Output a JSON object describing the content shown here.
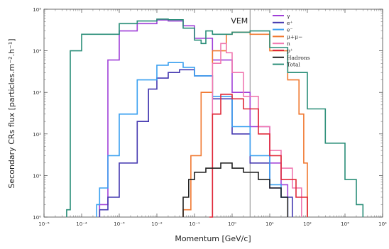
{
  "chart_data": {
    "type": "line",
    "xlabel": "Momentum [GeV/c]",
    "ylabel": "Secondary CRs flux [particles.m⁻².h⁻¹]",
    "xscale": "log",
    "yscale": "log",
    "xlim": [
      1e-05,
      10000
    ],
    "ylim": [
      1,
      100000
    ],
    "x_tick_labels": [
      "10⁻⁵",
      "10⁻⁴",
      "10⁻³",
      "10⁻²",
      "10⁻¹",
      "10⁰",
      "10¹",
      "10²",
      "10³",
      "10⁴"
    ],
    "y_tick_labels": [
      "10⁰",
      "10¹",
      "10²",
      "10³",
      "10⁴",
      "10⁵"
    ],
    "grid": false,
    "legend_position": "top-right",
    "annotation": {
      "text": "VEM",
      "x": 3
    },
    "series": [
      {
        "name": "γ",
        "color": "#a040d8",
        "points": [
          [
            0.0003,
            2
          ],
          [
            0.0005,
            6000
          ],
          [
            0.001,
            30000
          ],
          [
            0.003,
            45000
          ],
          [
            0.01,
            55000
          ],
          [
            0.02,
            52000
          ],
          [
            0.05,
            40000
          ],
          [
            0.1,
            20000
          ],
          [
            0.3,
            6000
          ],
          [
            1,
            1000
          ],
          [
            3,
            150
          ],
          [
            10,
            20
          ],
          [
            20,
            6
          ],
          [
            30,
            2
          ]
        ]
      },
      {
        "name": "e⁺",
        "color": "#4438b0",
        "points": [
          [
            0.0003,
            1.5
          ],
          [
            0.0005,
            3
          ],
          [
            0.001,
            20
          ],
          [
            0.003,
            200
          ],
          [
            0.006,
            1200
          ],
          [
            0.01,
            2200
          ],
          [
            0.02,
            3000
          ],
          [
            0.04,
            3500
          ],
          [
            0.1,
            2500
          ],
          [
            0.3,
            700
          ],
          [
            1,
            100
          ],
          [
            3,
            20
          ],
          [
            10,
            5
          ],
          [
            20,
            3
          ],
          [
            40,
            1.5
          ]
        ]
      },
      {
        "name": "e⁻",
        "color": "#3aa0f0",
        "points": [
          [
            0.00025,
            2
          ],
          [
            0.0003,
            5
          ],
          [
            0.0005,
            30
          ],
          [
            0.001,
            300
          ],
          [
            0.003,
            2000
          ],
          [
            0.01,
            4500
          ],
          [
            0.02,
            5200
          ],
          [
            0.05,
            4000
          ],
          [
            0.1,
            2500
          ],
          [
            0.3,
            800
          ],
          [
            1,
            150
          ],
          [
            3,
            30
          ],
          [
            10,
            6
          ],
          [
            20,
            3
          ],
          [
            30,
            1.5
          ]
        ]
      },
      {
        "name": "μ+μ−",
        "color": "#f07830",
        "points": [
          [
            0.05,
            1.5
          ],
          [
            0.08,
            30
          ],
          [
            0.15,
            1000
          ],
          [
            0.3,
            10000
          ],
          [
            0.7,
            25000
          ],
          [
            1,
            28000
          ],
          [
            3,
            25000
          ],
          [
            10,
            10000
          ],
          [
            30,
            2000
          ],
          [
            60,
            300
          ],
          [
            80,
            20
          ],
          [
            100,
            2
          ]
        ]
      },
      {
        "name": "n",
        "color": "#f078b0",
        "points": [
          [
            0.3,
            5000
          ],
          [
            0.5,
            15000
          ],
          [
            0.7,
            9000
          ],
          [
            1,
            3000
          ],
          [
            2,
            800
          ],
          [
            5,
            150
          ],
          [
            10,
            40
          ],
          [
            20,
            15
          ],
          [
            40,
            5
          ],
          [
            70,
            2
          ]
        ]
      },
      {
        "name": "p⁺",
        "color": "#e02838",
        "points": [
          [
            0.25,
            1
          ],
          [
            0.3,
            300
          ],
          [
            0.5,
            900
          ],
          [
            1,
            700
          ],
          [
            2,
            400
          ],
          [
            5,
            100
          ],
          [
            10,
            30
          ],
          [
            20,
            8
          ],
          [
            50,
            3
          ],
          [
            100,
            1.5
          ]
        ]
      },
      {
        "name": "Hadrons",
        "color": "#222222",
        "points": [
          [
            0.05,
            3
          ],
          [
            0.07,
            8
          ],
          [
            0.1,
            12
          ],
          [
            0.2,
            15
          ],
          [
            0.5,
            20
          ],
          [
            1,
            15
          ],
          [
            2,
            12
          ],
          [
            5,
            8
          ],
          [
            10,
            5
          ],
          [
            20,
            3
          ],
          [
            30,
            2
          ]
        ]
      },
      {
        "name": "Total",
        "color": "#2a8e78",
        "points": [
          [
            4e-05,
            1.5
          ],
          [
            5e-05,
            10000
          ],
          [
            0.0001,
            25000
          ],
          [
            0.001,
            45000
          ],
          [
            0.003,
            52000
          ],
          [
            0.01,
            58000
          ],
          [
            0.02,
            56000
          ],
          [
            0.05,
            35000
          ],
          [
            0.1,
            18000
          ],
          [
            0.15,
            15000
          ],
          [
            0.2,
            30000
          ],
          [
            0.3,
            25000
          ],
          [
            1,
            28000
          ],
          [
            3,
            30000
          ],
          [
            10,
            12000
          ],
          [
            30,
            3000
          ],
          [
            100,
            400
          ],
          [
            300,
            60
          ],
          [
            1000,
            8
          ],
          [
            2000,
            2
          ],
          [
            3000,
            1.2
          ]
        ]
      }
    ]
  }
}
